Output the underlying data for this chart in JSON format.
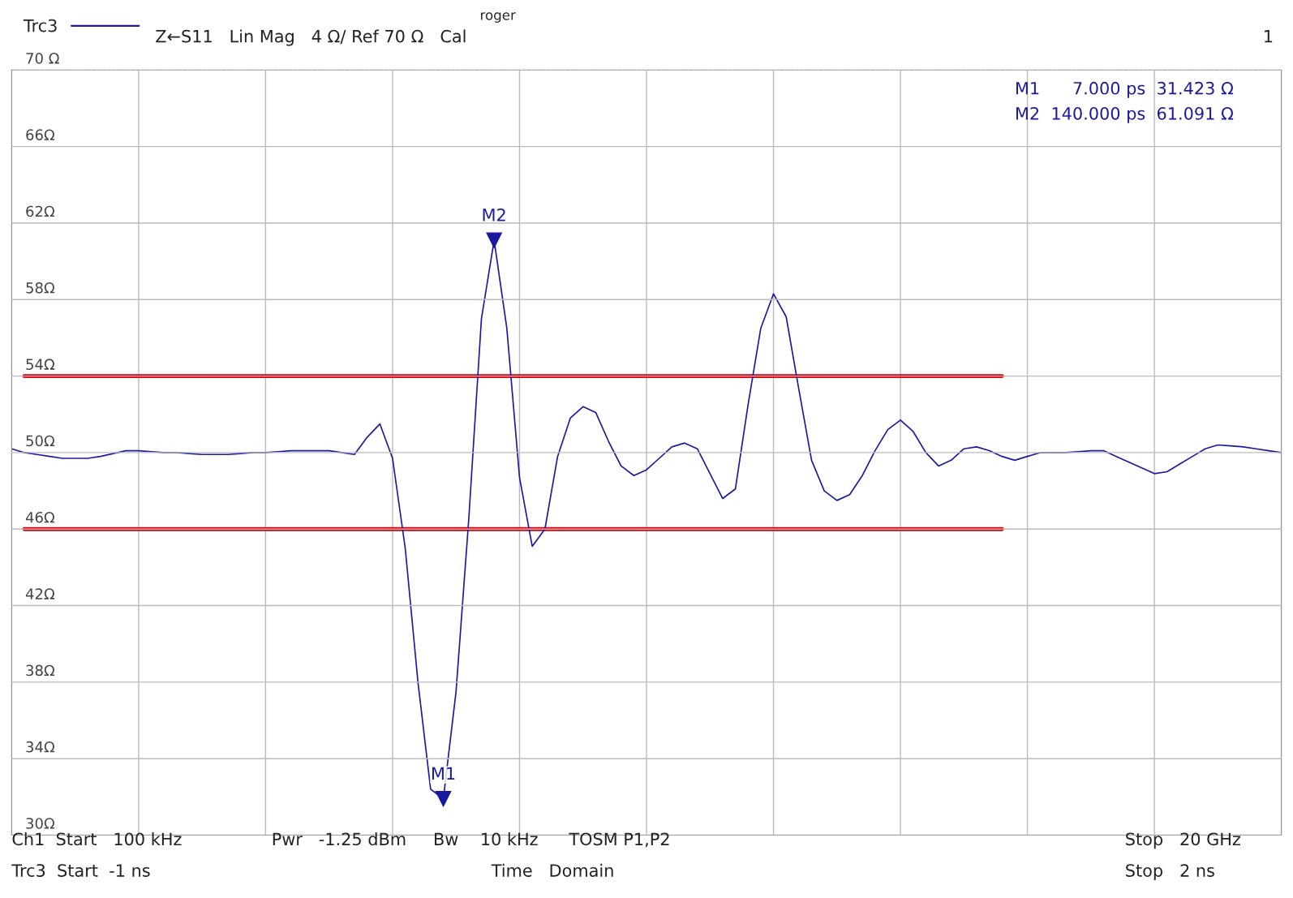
{
  "chart_data": {
    "type": "line",
    "title": "roger",
    "categories": [
      null,
      null,
      null,
      null,
      null,
      null,
      null,
      null,
      null,
      null,
      null,
      null,
      null,
      null,
      null,
      null,
      null,
      null,
      null,
      null,
      null,
      null,
      null,
      null,
      null,
      null,
      null,
      null,
      null,
      null,
      null,
      null,
      null,
      null,
      null,
      null,
      null,
      null,
      null,
      null,
      null,
      null,
      null,
      null,
      null,
      null,
      null,
      null,
      null,
      null,
      null,
      null,
      null,
      null,
      null,
      null,
      null,
      null,
      null,
      null,
      null,
      null,
      null,
      null,
      null,
      null,
      null,
      null,
      null,
      null,
      null,
      null,
      null,
      null,
      null,
      null,
      null,
      null,
      null,
      null,
      null,
      null,
      null,
      null,
      null,
      null,
      null,
      null,
      null,
      null,
      null,
      null,
      null,
      null,
      null,
      null,
      null,
      null,
      null,
      null,
      null
    ],
    "ylim": [
      30,
      70
    ],
    "yticks": [
      {
        "value": 30,
        "label": "30Ω"
      },
      {
        "value": 34,
        "label": "34Ω"
      },
      {
        "value": 38,
        "label": "38Ω"
      },
      {
        "value": 42,
        "label": "42Ω"
      },
      {
        "value": 46,
        "label": "46Ω"
      },
      {
        "value": 50,
        "label": "50Ω"
      },
      {
        "value": 54,
        "label": "54Ω"
      },
      {
        "value": 58,
        "label": "58Ω"
      },
      {
        "value": 62,
        "label": "62Ω"
      },
      {
        "value": 66,
        "label": "66Ω"
      },
      {
        "value": 70,
        "label": "70 Ω"
      }
    ],
    "tick_labels": "y",
    "grid": true,
    "legend": "top left",
    "marker": "none",
    "line_style": "solid",
    "series": [
      {
        "name": "Trc3",
        "color": "#1a1aa0",
        "values": [
          50.2,
          50.0,
          49.9,
          49.8,
          49.7,
          49.7,
          49.7,
          49.8,
          49.95,
          50.1,
          50.1,
          50.05,
          50.0,
          50.0,
          49.95,
          49.9,
          49.9,
          49.9,
          49.95,
          50.0,
          50.0,
          50.05,
          50.1,
          50.1,
          50.1,
          50.1,
          50.0,
          49.9,
          50.8,
          51.5,
          49.7,
          45.0,
          38.0,
          32.4,
          31.9,
          37.5,
          46.5,
          57.0,
          61.1,
          56.5,
          48.7,
          45.1,
          46.0,
          49.8,
          51.8,
          52.4,
          52.1,
          50.6,
          49.3,
          48.8,
          49.1,
          49.7,
          50.3,
          50.5,
          50.2,
          48.9,
          47.6,
          48.1,
          52.5,
          56.5,
          58.3,
          57.1,
          53.3,
          49.6,
          48.0,
          47.5,
          47.8,
          48.8,
          50.1,
          51.2,
          51.7,
          51.1,
          50.0,
          49.3,
          49.6,
          50.2,
          50.3,
          50.1,
          49.8,
          49.6,
          49.8,
          50.0,
          50.0,
          50.0,
          50.05,
          50.1,
          50.1,
          49.8,
          49.5,
          49.2,
          48.9,
          49.0,
          49.4,
          49.8,
          50.2,
          50.4,
          50.35,
          50.3,
          50.2,
          50.1,
          50.0
        ]
      },
      {
        "color": "#e8000b",
        "values": [
          null,
          54,
          54,
          54,
          54,
          54,
          54,
          54,
          54,
          54,
          54,
          54,
          54,
          54,
          54,
          54,
          54,
          54,
          54,
          54,
          54,
          54,
          54,
          54,
          54,
          54,
          54,
          54,
          54,
          54,
          54,
          54,
          54,
          54,
          54,
          54,
          54,
          54,
          54,
          54,
          54,
          54,
          54,
          54,
          54,
          54,
          54,
          54,
          54,
          54,
          54,
          54,
          54,
          54,
          54,
          54,
          54,
          54,
          54,
          54,
          54,
          54,
          54,
          54,
          54,
          54,
          54,
          54,
          54,
          54,
          54,
          54,
          54,
          54,
          54,
          54,
          54,
          54,
          54,
          null,
          null,
          null,
          null,
          null,
          null,
          null,
          null,
          null,
          null,
          null,
          null,
          null,
          null,
          null,
          null,
          null,
          null,
          null,
          null,
          null,
          null
        ]
      },
      {
        "color": "#e8000b",
        "values": [
          null,
          46,
          46,
          46,
          46,
          46,
          46,
          46,
          46,
          46,
          46,
          46,
          46,
          46,
          46,
          46,
          46,
          46,
          46,
          46,
          46,
          46,
          46,
          46,
          46,
          46,
          46,
          46,
          46,
          46,
          46,
          46,
          46,
          46,
          46,
          46,
          46,
          46,
          46,
          46,
          46,
          46,
          46,
          46,
          46,
          46,
          46,
          46,
          46,
          46,
          46,
          46,
          46,
          46,
          46,
          46,
          46,
          46,
          46,
          46,
          46,
          46,
          46,
          46,
          46,
          46,
          46,
          46,
          46,
          46,
          46,
          46,
          46,
          46,
          46,
          46,
          46,
          46,
          46,
          null,
          null,
          null,
          null,
          null,
          null,
          null,
          null,
          null,
          null,
          null,
          null,
          null,
          null,
          null,
          null,
          null,
          null,
          null,
          null,
          null,
          null
        ]
      }
    ],
    "annotations": [
      "M1",
      "M2",
      "Z←S11   Lin Mag   4 Ω/ Ref 70 Ω   Cal",
      "1",
      "M1      7.000 ps  31.423 Ω",
      "M2  140.000 ps  61.091 Ω",
      "Ch1  Start   100 kHz",
      "Pwr   -1.25 dBm",
      "Bw    10 kHz",
      "TOSM P1,P2",
      "Stop   20 GHz",
      "Trc3  Start  -1 ns",
      "Time   Domain",
      "Stop   2 ns"
    ]
  }
}
